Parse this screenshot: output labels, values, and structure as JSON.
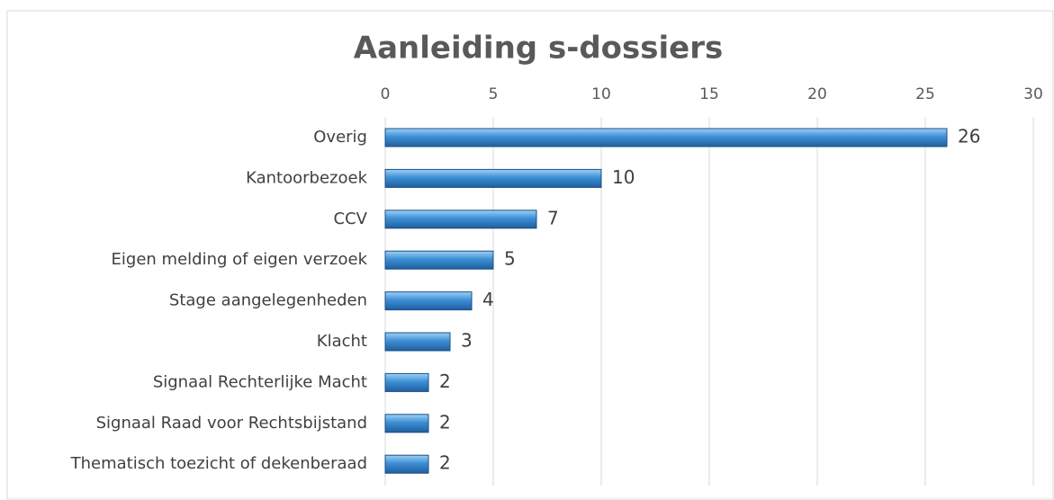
{
  "chart_data": {
    "type": "hbar",
    "title": "Aanleiding s-dossiers",
    "categories": [
      "Overig",
      "Kantoorbezoek",
      "CCV",
      "Eigen melding of eigen verzoek",
      "Stage aangelegenheden",
      "Klacht",
      "Signaal Rechterlijke Macht",
      "Signaal Raad voor Rechtsbijstand",
      "Thematisch toezicht of dekenberaad"
    ],
    "values": [
      26,
      10,
      7,
      5,
      4,
      3,
      2,
      2,
      2
    ],
    "color": "#3d8fd6",
    "xlim": [
      0,
      30
    ],
    "xticks": [
      0,
      5,
      10,
      15,
      20,
      25,
      30
    ],
    "grid": true
  }
}
